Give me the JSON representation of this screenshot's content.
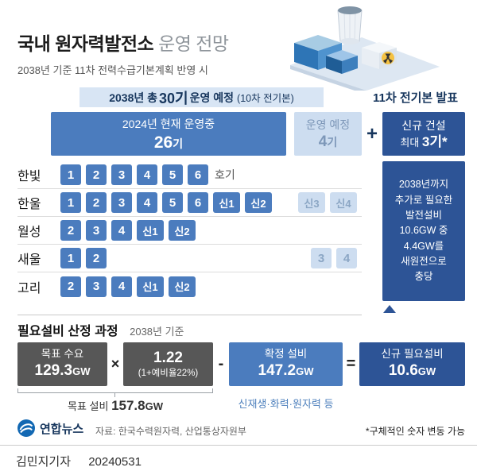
{
  "colors": {
    "primary_blue": "#4b7cbe",
    "navy": "#2d5496",
    "light_blue": "#cdddf0",
    "banner_blue": "#d8e5f4",
    "dark_gray": "#575757",
    "accent_text": "#17365d",
    "radiation_yellow": "#f5c242"
  },
  "page": {
    "title_strong": "국내 원자력발전소",
    "title_light": " 운영 전망",
    "subtitle": "2038년 기준 11차 전력수급기본계획 반영 시",
    "byline": "김민지기자",
    "date": "20240531"
  },
  "banner": {
    "pre": "2038년 총",
    "big": "30기",
    "post": "운영 예정",
    "note": "(10차 전기본)",
    "right": "11차 전기본 발표"
  },
  "header_boxes": {
    "operating": {
      "line1": "2024년 현재 운영중",
      "count": "26",
      "unit": "기"
    },
    "planned": {
      "line1": "운영 예정",
      "count": "4",
      "unit": "기"
    },
    "plus": "+",
    "new_build": {
      "line1": "신규 건설",
      "pre": "최대 ",
      "big": "3기*"
    }
  },
  "reactors": [
    {
      "name": "한빛",
      "operating": [
        "1",
        "2",
        "3",
        "4",
        "5",
        "6"
      ],
      "suffix": "호기",
      "planned": []
    },
    {
      "name": "한울",
      "operating": [
        "1",
        "2",
        "3",
        "4",
        "5",
        "6",
        "신1",
        "신2"
      ],
      "suffix": "",
      "planned": [
        "신3",
        "신4"
      ]
    },
    {
      "name": "월성",
      "operating": [
        "2",
        "3",
        "4",
        "신1",
        "신2"
      ],
      "suffix": "",
      "planned": []
    },
    {
      "name": "새울",
      "operating": [
        "1",
        "2"
      ],
      "suffix": "",
      "planned": [
        "3",
        "4"
      ]
    },
    {
      "name": "고리",
      "operating": [
        "2",
        "3",
        "4",
        "신1",
        "신2"
      ],
      "suffix": "",
      "planned": []
    }
  ],
  "sidebar": {
    "note": "2038년까지\n추가로 필요한\n발전설비\n10.6GW 중\n4.4GW를\n새원전으로\n충당"
  },
  "formula": {
    "section_title": "필요설비 산정 과정",
    "section_note": "2038년 기준",
    "demand": {
      "label": "목표 수요",
      "value": "129.3",
      "unit": "GW"
    },
    "op_multiply": "×",
    "factor": {
      "value": "1.22",
      "label": "(1+예비율22%)"
    },
    "op_minus": "-",
    "confirmed": {
      "label": "확정 설비",
      "value": "147.2",
      "unit": "GW"
    },
    "op_equals": "=",
    "result": {
      "label": "신규 필요설비",
      "value": "10.6",
      "unit": "GW"
    },
    "target_capacity": {
      "label": "목표 설비 ",
      "value": "157.8",
      "unit": "GW"
    },
    "confirmed_note": "신재생·화력·원자력 등"
  },
  "footer": {
    "logo_text": "연합뉴스",
    "source": "자료: 한국수력원자력, 산업통상자원부",
    "note": "*구체적인 숫자 변동 가능"
  }
}
